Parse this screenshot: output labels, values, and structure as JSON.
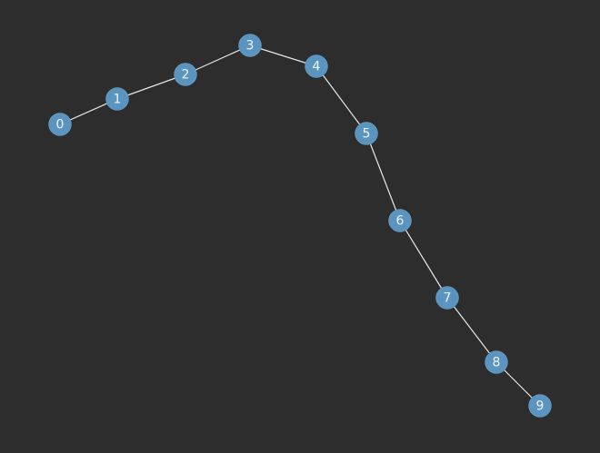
{
  "graph": {
    "background_color": "#2d2d2d",
    "node_color": "#5b95bf",
    "edge_color": "#e6e6e6",
    "label_color": "#eef4f8",
    "nodes": [
      {
        "id": "n0",
        "label": "0"
      },
      {
        "id": "n1",
        "label": "1"
      },
      {
        "id": "n2",
        "label": "2"
      },
      {
        "id": "n3",
        "label": "3"
      },
      {
        "id": "n4",
        "label": "4"
      },
      {
        "id": "n5",
        "label": "5"
      },
      {
        "id": "n6",
        "label": "6"
      },
      {
        "id": "n7",
        "label": "7"
      },
      {
        "id": "n8",
        "label": "8"
      },
      {
        "id": "n9",
        "label": "9"
      }
    ],
    "edges": [
      {
        "from": "n0",
        "to": "n1"
      },
      {
        "from": "n1",
        "to": "n2"
      },
      {
        "from": "n2",
        "to": "n3"
      },
      {
        "from": "n3",
        "to": "n4"
      },
      {
        "from": "n4",
        "to": "n5"
      },
      {
        "from": "n5",
        "to": "n6"
      },
      {
        "from": "n6",
        "to": "n7"
      },
      {
        "from": "n7",
        "to": "n8"
      },
      {
        "from": "n8",
        "to": "n9"
      }
    ]
  }
}
